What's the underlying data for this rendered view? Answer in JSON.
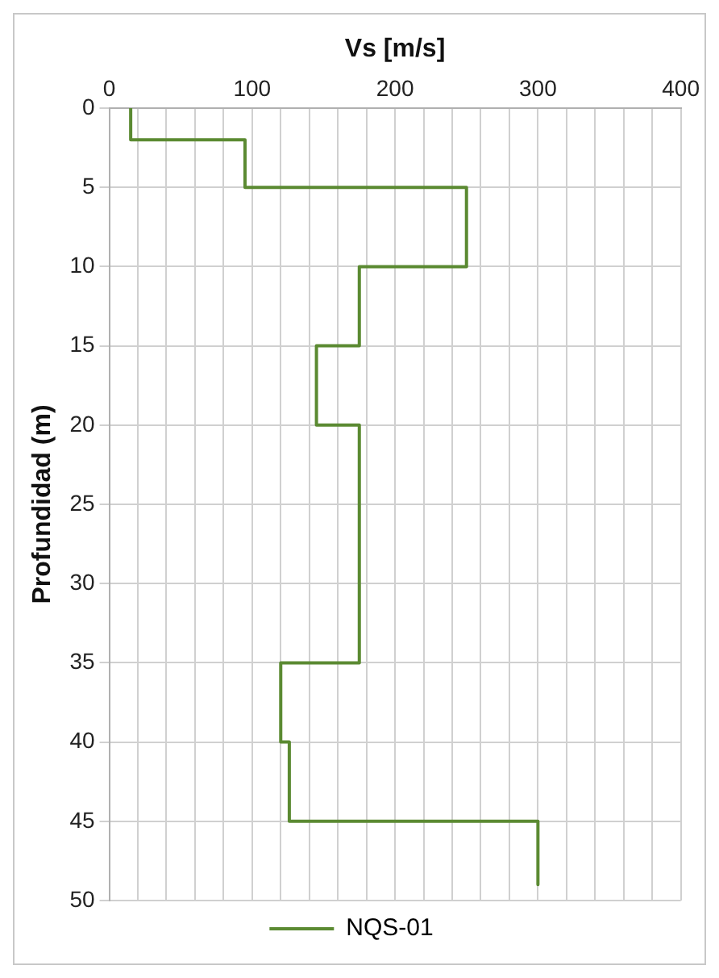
{
  "chart_data": {
    "type": "line",
    "xlabel": "Vs [m/s]",
    "ylabel": "Profundidad (m)",
    "xlim": [
      0,
      400
    ],
    "xticks": [
      0,
      {
        "value": 20,
        "label": null
      },
      {
        "value": 40,
        "label": null
      },
      {
        "value": 60,
        "label": null
      },
      {
        "value": 80,
        "label": null
      },
      100,
      {
        "value": 120,
        "label": null
      },
      {
        "value": 140,
        "label": null
      },
      {
        "value": 160,
        "label": null
      },
      {
        "value": 180,
        "label": null
      },
      200,
      {
        "value": 220,
        "label": null
      },
      {
        "value": 240,
        "label": null
      },
      {
        "value": 260,
        "label": null
      },
      {
        "value": 280,
        "label": null
      },
      300,
      {
        "value": 320,
        "label": null
      },
      {
        "value": 340,
        "label": null
      },
      {
        "value": 360,
        "label": null
      },
      {
        "value": 380,
        "label": null
      },
      400
    ],
    "ylim": [
      50,
      0
    ],
    "yticks": [
      0,
      5,
      10,
      15,
      20,
      25,
      30,
      35,
      40,
      45,
      50
    ],
    "grid": true,
    "legend": "bottom",
    "marker": "none",
    "line_style": "solid",
    "series": [
      {
        "name": "NQS-01",
        "color": "#5b8a32",
        "x": [
          15,
          15,
          95,
          95,
          250,
          250,
          175,
          175,
          145,
          145,
          175,
          175,
          120,
          120,
          126,
          126,
          300,
          300
        ],
        "values": [
          0,
          2,
          2,
          5,
          5,
          10,
          10,
          15,
          15,
          20,
          20,
          35,
          35,
          40,
          40,
          45,
          45,
          49
        ]
      }
    ]
  }
}
